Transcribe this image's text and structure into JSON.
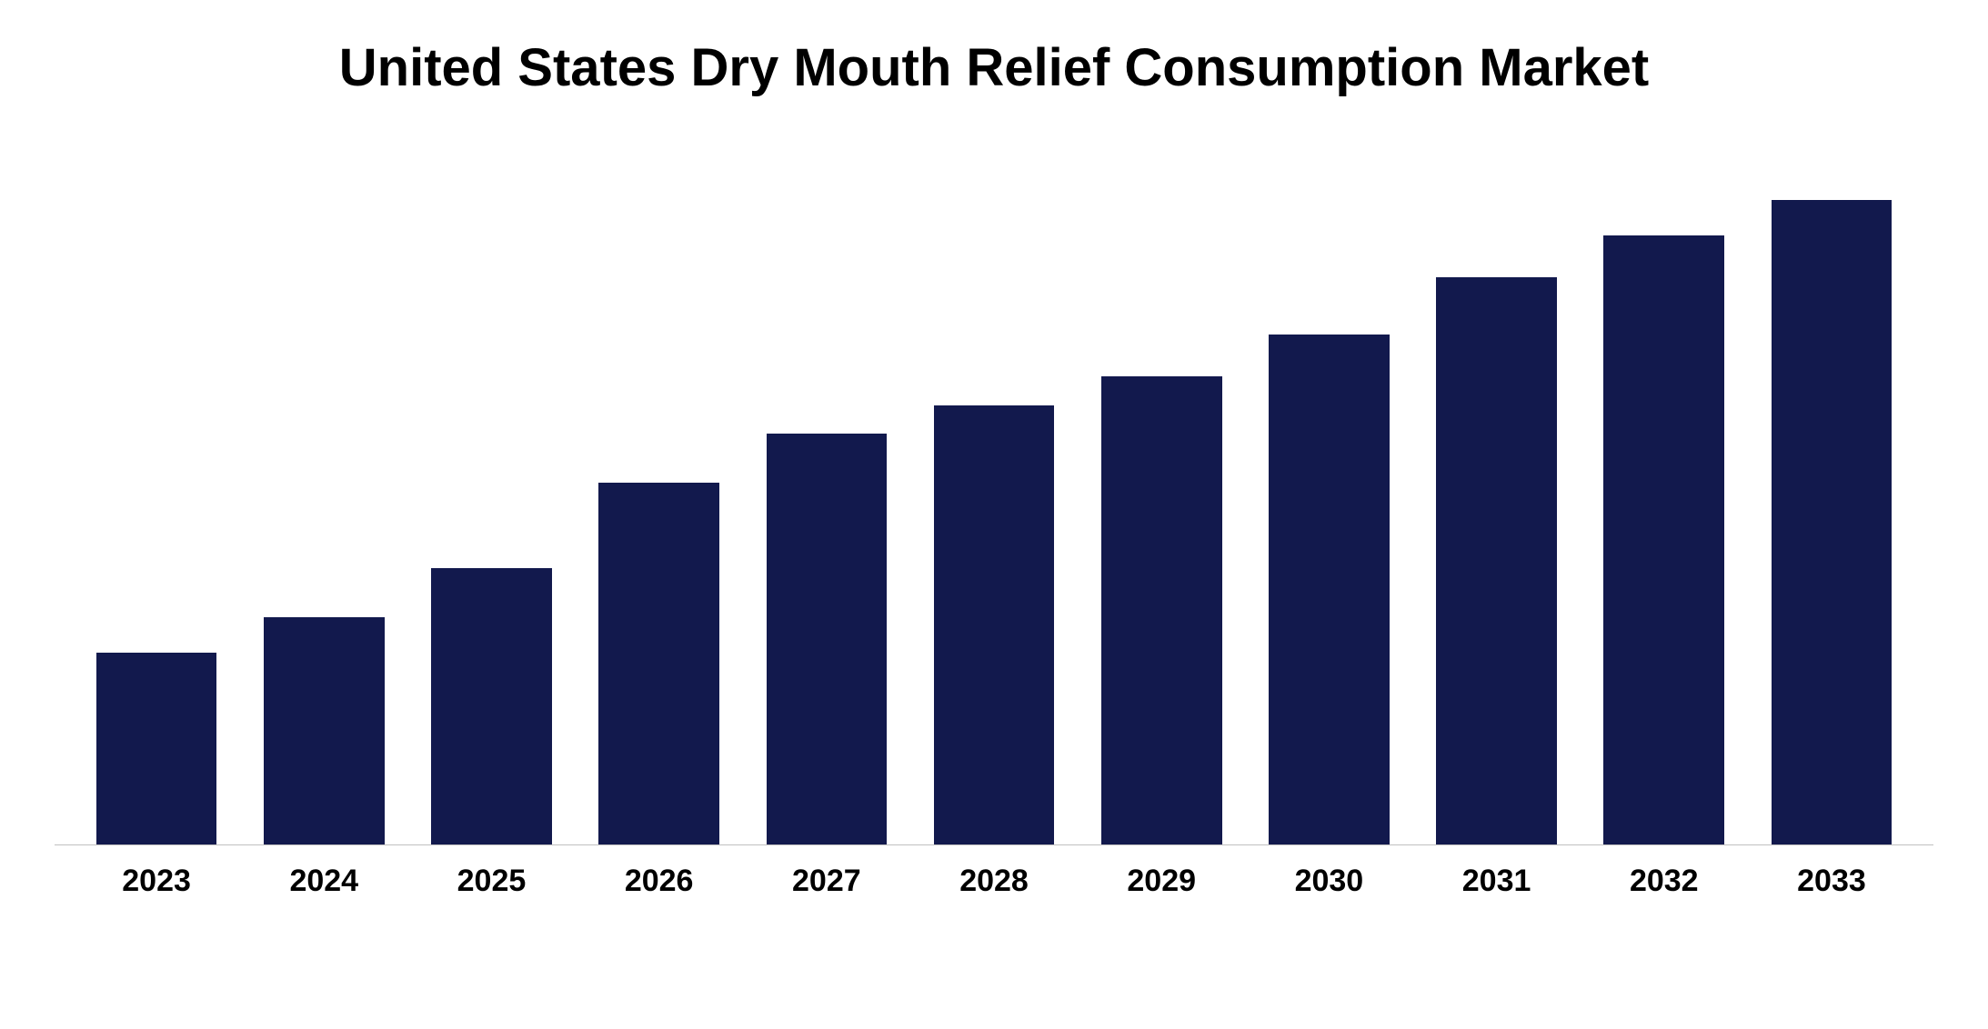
{
  "chart": {
    "type": "bar",
    "title": "United States Dry Mouth Relief Consumption Market",
    "title_fontsize": 58,
    "categories": [
      "2023",
      "2024",
      "2025",
      "2026",
      "2027",
      "2028",
      "2029",
      "2030",
      "2031",
      "2032",
      "2033"
    ],
    "values": [
      27,
      32,
      39,
      51,
      58,
      62,
      66,
      72,
      80,
      86,
      91
    ],
    "bar_color": "#12194d",
    "bar_width": 0.72,
    "ylim": [
      0,
      100
    ],
    "background_color": "#ffffff",
    "axis_line_color": "#c0c0c0",
    "label_fontsize": 34,
    "label_fontweight": "900",
    "label_color": "#000000"
  }
}
